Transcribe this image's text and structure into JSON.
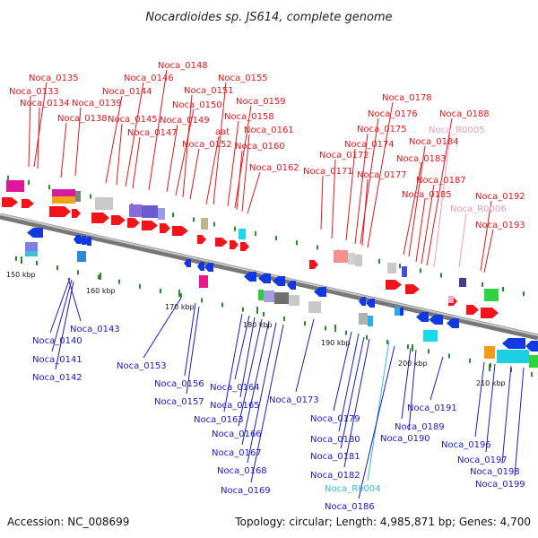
{
  "title": "Nocardioides sp. JS614, complete genome",
  "footer": {
    "accession": "Accession: NC_008699",
    "topology": "Topology: circular; Length: 4,985,871 bp; Genes: 4,700"
  },
  "colors": {
    "upper_label": "#e8171b",
    "lower_label": "#1a1acc",
    "rna_upper_label": "#f09ab8",
    "rna_lower_label": "#35b8e6",
    "backbone": "#888888",
    "tick": "#2a8a2a"
  },
  "kbp_ticks": [
    "150 kbp",
    "160 kbp",
    "170 kbp",
    "180 kbp",
    "190 kbp",
    "200 kbp",
    "210 kbp"
  ],
  "upper_labels": [
    "Noca_0135",
    "Noca_0133",
    "Noca_0134",
    "Noca_0139",
    "Noca_0138",
    "Noca_0144",
    "Noca_0145",
    "Noca_0146",
    "Noca_0147",
    "Noca_0148",
    "Noca_0149",
    "Noca_0150",
    "Noca_0151",
    "Noca_0152",
    "aat",
    "Noca_0155",
    "Noca_0158",
    "Noca_0159",
    "Noca_0160",
    "Noca_0161",
    "Noca_0162",
    "Noca_0171",
    "Noca_0172",
    "Noca_0174",
    "Noca_0175",
    "Noca_0176",
    "Noca_0177",
    "Noca_0178",
    "Noca_0183",
    "Noca_0184",
    "Noca_0185",
    "Noca_0187",
    "Noca_0188",
    "Noca_R0005",
    "Noca_R0006",
    "Noca_0192",
    "Noca_0193"
  ],
  "lower_labels": [
    "Noca_0140",
    "Noca_0141",
    "Noca_0142",
    "Noca_0143",
    "Noca_0153",
    "Noca_0156",
    "Noca_0157",
    "Noca_0163",
    "Noca_0164",
    "Noca_0165",
    "Noca_0166",
    "Noca_0167",
    "Noca_0168",
    "Noca_0169",
    "Noca_0173",
    "Noca_0179",
    "Noca_0180",
    "Noca_0181",
    "Noca_0182",
    "Noca_R0004",
    "Noca_0186",
    "Noca_0189",
    "Noca_0190",
    "Noca_0191",
    "Noca_0196",
    "Noca_0197",
    "Noca_0198",
    "Noca_0199"
  ]
}
